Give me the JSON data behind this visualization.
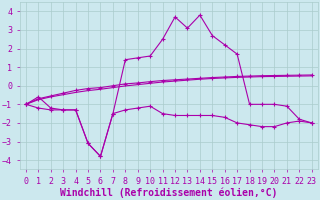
{
  "xlabel": "Windchill (Refroidissement éolien,°C)",
  "xlim": [
    -0.5,
    23.5
  ],
  "ylim": [
    -4.5,
    4.5
  ],
  "yticks": [
    -4,
    -3,
    -2,
    -1,
    0,
    1,
    2,
    3,
    4
  ],
  "xticks": [
    0,
    1,
    2,
    3,
    4,
    5,
    6,
    7,
    8,
    9,
    10,
    11,
    12,
    13,
    14,
    15,
    16,
    17,
    18,
    19,
    20,
    21,
    22,
    23
  ],
  "background_color": "#cce8ee",
  "grid_color": "#aacccc",
  "line_color": "#aa00aa",
  "series": [
    {
      "x": [
        0,
        1,
        2,
        3,
        4,
        5,
        6,
        7,
        8,
        9,
        10,
        11,
        12,
        13,
        14,
        15,
        16,
        17,
        18,
        19,
        20,
        21,
        22,
        23
      ],
      "y": [
        -1.0,
        -0.6,
        -1.2,
        -1.3,
        -1.3,
        -3.1,
        -3.8,
        -1.5,
        1.4,
        1.5,
        1.6,
        2.5,
        3.7,
        3.1,
        3.8,
        2.7,
        2.2,
        1.7,
        -1.0,
        -1.0,
        -1.0,
        -1.1,
        -1.8,
        -2.0
      ],
      "marker": true
    },
    {
      "x": [
        0,
        1,
        2,
        3,
        4,
        5,
        6,
        7,
        8,
        9,
        10,
        11,
        12,
        13,
        14,
        15,
        16,
        17,
        18,
        19,
        20,
        21,
        22,
        23
      ],
      "y": [
        -1.0,
        -0.7,
        -0.55,
        -0.4,
        -0.25,
        -0.15,
        -0.1,
        0.0,
        0.1,
        0.15,
        0.22,
        0.28,
        0.32,
        0.36,
        0.4,
        0.44,
        0.47,
        0.5,
        0.52,
        0.54,
        0.55,
        0.56,
        0.57,
        0.58
      ],
      "marker": true
    },
    {
      "x": [
        0,
        1,
        2,
        3,
        4,
        5,
        6,
        7,
        8,
        9,
        10,
        11,
        12,
        13,
        14,
        15,
        16,
        17,
        18,
        19,
        20,
        21,
        22,
        23
      ],
      "y": [
        -1.0,
        -0.75,
        -0.6,
        -0.48,
        -0.36,
        -0.26,
        -0.19,
        -0.1,
        -0.01,
        0.06,
        0.13,
        0.2,
        0.25,
        0.3,
        0.35,
        0.39,
        0.42,
        0.45,
        0.47,
        0.49,
        0.5,
        0.51,
        0.52,
        0.53
      ],
      "marker": false
    },
    {
      "x": [
        0,
        1,
        2,
        3,
        4,
        5,
        6,
        7,
        8,
        9,
        10,
        11,
        12,
        13,
        14,
        15,
        16,
        17,
        18,
        19,
        20,
        21,
        22,
        23
      ],
      "y": [
        -1.0,
        -1.2,
        -1.3,
        -1.3,
        -1.3,
        -3.1,
        -3.8,
        -1.5,
        -1.3,
        -1.2,
        -1.1,
        -1.5,
        -1.6,
        -1.6,
        -1.6,
        -1.6,
        -1.7,
        -2.0,
        -2.1,
        -2.2,
        -2.2,
        -2.0,
        -1.9,
        -2.0
      ],
      "marker": true
    }
  ],
  "xlabel_fontsize": 7,
  "tick_fontsize": 6
}
